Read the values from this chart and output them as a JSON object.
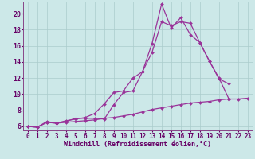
{
  "xlabel": "Windchill (Refroidissement éolien,°C)",
  "background_color": "#cce8e8",
  "grid_color": "#aacccc",
  "line_color": "#993399",
  "xlim": [
    -0.5,
    23.5
  ],
  "ylim": [
    5.5,
    21.5
  ],
  "xticks": [
    0,
    1,
    2,
    3,
    4,
    5,
    6,
    7,
    8,
    9,
    10,
    11,
    12,
    13,
    14,
    15,
    16,
    17,
    18,
    19,
    20,
    21,
    22,
    23
  ],
  "yticks": [
    6,
    8,
    10,
    12,
    14,
    16,
    18,
    20
  ],
  "line1_y": [
    6.0,
    5.9,
    6.5,
    6.4,
    6.6,
    7.0,
    7.0,
    7.0,
    6.9,
    8.7,
    10.2,
    10.4,
    12.8,
    15.2,
    19.0,
    18.5,
    19.0,
    18.8,
    16.4,
    14.1,
    12.0,
    9.5,
    null,
    null
  ],
  "line2_y": [
    6.0,
    5.9,
    6.6,
    6.4,
    6.7,
    6.9,
    7.1,
    7.6,
    8.8,
    10.2,
    10.4,
    12.0,
    12.8,
    16.3,
    21.2,
    18.2,
    19.5,
    17.4,
    16.4,
    14.1,
    11.9,
    11.3,
    null,
    null
  ],
  "line3_y": [
    6.0,
    5.9,
    6.5,
    6.4,
    6.5,
    6.6,
    6.7,
    6.8,
    7.0,
    7.1,
    7.3,
    7.5,
    7.8,
    8.1,
    8.3,
    8.5,
    8.7,
    8.9,
    9.0,
    9.1,
    9.3,
    9.4,
    9.4,
    9.5
  ],
  "marker": "D",
  "marker_size": 2.0,
  "linewidth": 0.9,
  "tick_fontsize": 5.5,
  "xlabel_fontsize": 6.0
}
